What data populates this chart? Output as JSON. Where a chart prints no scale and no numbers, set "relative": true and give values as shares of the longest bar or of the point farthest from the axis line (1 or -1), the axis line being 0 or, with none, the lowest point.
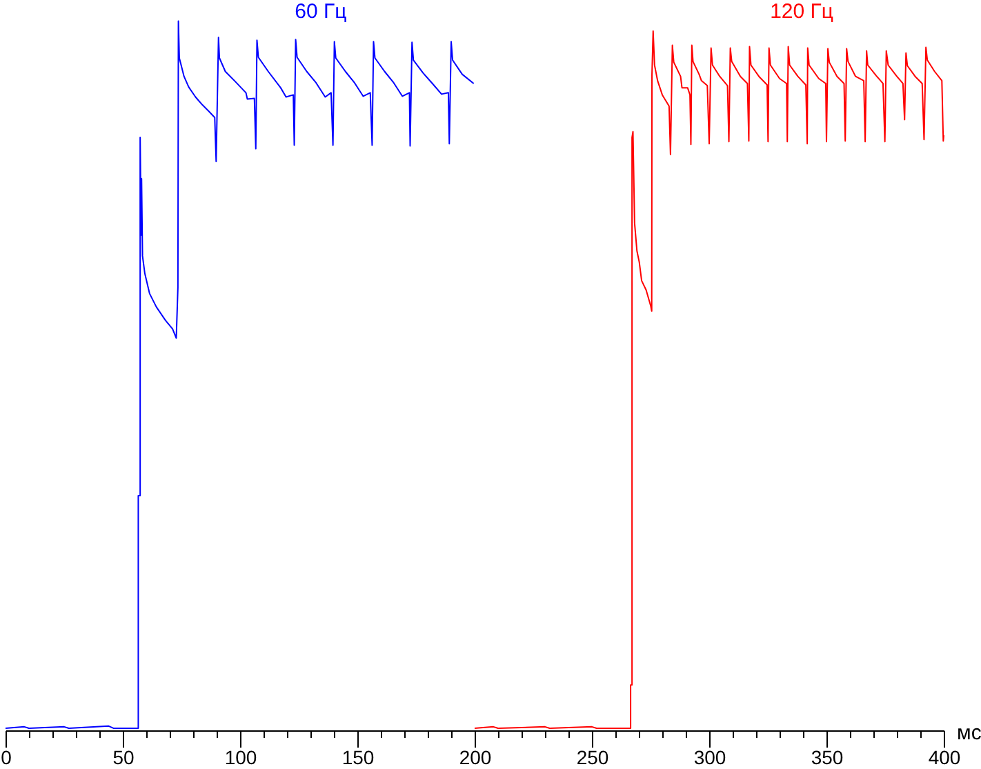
{
  "chart_data": {
    "type": "line",
    "relative": true,
    "xlabel": "мс",
    "xlim": [
      0,
      400
    ],
    "xticks": [
      0,
      {
        "value": 10,
        "label": null
      },
      {
        "value": 20,
        "label": null
      },
      {
        "value": 30,
        "label": null
      },
      {
        "value": 40,
        "label": null
      },
      50,
      {
        "value": 60,
        "label": null
      },
      {
        "value": 70,
        "label": null
      },
      {
        "value": 80,
        "label": null
      },
      {
        "value": 90,
        "label": null
      },
      100,
      {
        "value": 110,
        "label": null
      },
      {
        "value": 120,
        "label": null
      },
      {
        "value": 130,
        "label": null
      },
      {
        "value": 140,
        "label": null
      },
      150,
      {
        "value": 160,
        "label": null
      },
      {
        "value": 170,
        "label": null
      },
      {
        "value": 180,
        "label": null
      },
      {
        "value": 190,
        "label": null
      },
      200,
      {
        "value": 210,
        "label": null
      },
      {
        "value": 220,
        "label": null
      },
      {
        "value": 230,
        "label": null
      },
      {
        "value": 240,
        "label": null
      },
      250,
      {
        "value": 260,
        "label": null
      },
      {
        "value": 270,
        "label": null
      },
      {
        "value": 280,
        "label": null
      },
      {
        "value": 290,
        "label": null
      },
      300,
      {
        "value": 310,
        "label": null
      },
      {
        "value": 320,
        "label": null
      },
      {
        "value": 330,
        "label": null
      },
      {
        "value": 340,
        "label": null
      },
      350,
      {
        "value": 360,
        "label": null
      },
      {
        "value": 370,
        "label": null
      },
      {
        "value": 380,
        "label": null
      },
      {
        "value": 390,
        "label": null
      },
      400
    ],
    "series": [
      {
        "name": "60 Гц",
        "color": "#0000ff",
        "x": [
          0,
          8,
          10,
          25,
          27,
          44,
          46,
          56.6,
          56.6,
          57.4,
          57.4,
          57.8,
          58.0,
          58.4,
          59.4,
          61.4,
          64.3,
          68.2,
          71.2,
          72.8,
          73.5,
          73.7,
          74.1,
          76.1,
          78.1,
          81.0,
          83.9,
          86.9,
          89.2,
          89.8,
          90.8,
          91.2,
          93.7,
          97.6,
          102.5,
          103.1,
          106.1,
          106.7,
          107.2,
          107.8,
          112.0,
          117.3,
          119.6,
          122.7,
          123.1,
          123.7,
          124.3,
          128.4,
          132.4,
          136.3,
          138.8,
          139.6,
          140.2,
          140.8,
          144.9,
          148.8,
          152.5,
          155.5,
          156.3,
          156.9,
          157.5,
          161.6,
          165.5,
          169.2,
          172.2,
          172.5,
          173.3,
          173.9,
          178.0,
          182.0,
          185.9,
          188.8,
          189.2,
          190.0,
          190.6,
          194.7,
          199.6
        ],
        "values": [
          0.003,
          0.005,
          0.003,
          0.005,
          0.003,
          0.006,
          0.003,
          0.003,
          0.331,
          0.331,
          0.836,
          0.698,
          0.778,
          0.669,
          0.644,
          0.616,
          0.597,
          0.578,
          0.566,
          0.553,
          0.625,
          1.0,
          0.948,
          0.922,
          0.907,
          0.893,
          0.882,
          0.872,
          0.864,
          0.802,
          0.977,
          0.948,
          0.929,
          0.916,
          0.899,
          0.89,
          0.891,
          0.82,
          0.973,
          0.949,
          0.929,
          0.906,
          0.893,
          0.896,
          0.825,
          0.974,
          0.949,
          0.929,
          0.913,
          0.893,
          0.899,
          0.825,
          0.971,
          0.948,
          0.929,
          0.913,
          0.894,
          0.899,
          0.825,
          0.971,
          0.948,
          0.929,
          0.913,
          0.894,
          0.899,
          0.824,
          0.97,
          0.945,
          0.927,
          0.912,
          0.897,
          0.899,
          0.827,
          0.971,
          0.945,
          0.925,
          0.912
        ]
      },
      {
        "name": "120 Гц",
        "color": "#ff0000",
        "x": [
          200,
          208,
          210,
          230,
          232,
          250,
          252,
          266.5,
          266.5,
          267.1,
          267.1,
          267.5,
          268.2,
          269.2,
          270.2,
          271.2,
          273.1,
          275.1,
          275.5,
          275.6,
          276.1,
          276.7,
          278.0,
          280.0,
          282.9,
          283.5,
          284.3,
          284.9,
          287.8,
          288.4,
          290.8,
          291.8,
          292.2,
          292.6,
          293.1,
          295.7,
          296.7,
          299.2,
          300.0,
          300.8,
          301.4,
          304.5,
          307.8,
          308.4,
          309.0,
          309.6,
          313.3,
          316.3,
          316.9,
          317.2,
          317.8,
          321.2,
          324.7,
          325.1,
          325.5,
          326.1,
          330.0,
          333.0,
          333.3,
          333.7,
          334.3,
          337.8,
          341.2,
          341.8,
          342.0,
          342.6,
          346.7,
          349.7,
          350.0,
          350.6,
          351.2,
          354.5,
          357.5,
          358.0,
          358.6,
          359.2,
          362.4,
          365.9,
          366.5,
          367.1,
          367.6,
          371.2,
          374.1,
          374.9,
          375.5,
          376.3,
          380.0,
          382.6,
          383.3,
          383.9,
          384.5,
          387.8,
          390.8,
          391.6,
          392.4,
          393.0,
          396.1,
          399.2,
          399.8,
          400
        ],
        "values": [
          0.003,
          0.005,
          0.003,
          0.005,
          0.003,
          0.005,
          0.003,
          0.003,
          0.064,
          0.064,
          0.836,
          0.844,
          0.715,
          0.676,
          0.66,
          0.634,
          0.621,
          0.598,
          0.591,
          0.924,
          0.986,
          0.938,
          0.916,
          0.896,
          0.88,
          0.812,
          0.966,
          0.942,
          0.922,
          0.906,
          0.906,
          0.896,
          0.826,
          0.966,
          0.943,
          0.925,
          0.916,
          0.909,
          0.827,
          0.962,
          0.938,
          0.922,
          0.909,
          0.83,
          0.962,
          0.943,
          0.922,
          0.912,
          0.831,
          0.964,
          0.938,
          0.922,
          0.91,
          0.83,
          0.962,
          0.938,
          0.919,
          0.912,
          0.83,
          0.964,
          0.938,
          0.922,
          0.91,
          0.827,
          0.962,
          0.938,
          0.919,
          0.912,
          0.83,
          0.961,
          0.942,
          0.922,
          0.912,
          0.831,
          0.961,
          0.943,
          0.922,
          0.916,
          0.83,
          0.958,
          0.938,
          0.923,
          0.912,
          0.83,
          0.958,
          0.938,
          0.922,
          0.912,
          0.861,
          0.955,
          0.937,
          0.922,
          0.912,
          0.833,
          0.963,
          0.945,
          0.929,
          0.916,
          0.831,
          0.839
        ]
      }
    ]
  }
}
